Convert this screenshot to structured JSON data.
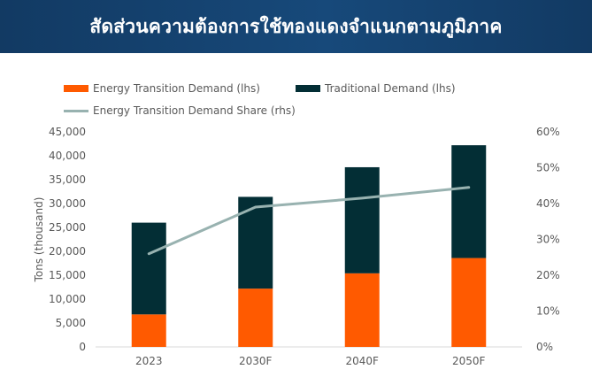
{
  "header": {
    "title": "สัดส่วนความต้องการใช้ทองแดงจำแนกตามภูมิภาค"
  },
  "colors": {
    "header_bg": "#17497a",
    "energy_transition": "#ff5a00",
    "traditional": "#032e35",
    "share_line": "#98b2b0",
    "axis_text": "#595959",
    "grid": "#d9d9d9"
  },
  "chart_data": {
    "type": "bar",
    "stacked": true,
    "categories": [
      "2023",
      "2030F",
      "2040F",
      "2050F"
    ],
    "series": [
      {
        "name": "Energy Transition Demand (lhs)",
        "axis": "left",
        "kind": "bar",
        "values": [
          6800,
          12200,
          15400,
          18600
        ]
      },
      {
        "name": "Traditional Demand (lhs)",
        "axis": "left",
        "kind": "bar",
        "values": [
          19200,
          19200,
          22200,
          23600
        ]
      },
      {
        "name": "Energy Transition Demand Share (rhs)",
        "axis": "right",
        "kind": "line",
        "values": [
          26,
          39,
          41.5,
          44.5
        ]
      }
    ],
    "ylabel": "Tons (thousand)",
    "ylim": [
      0,
      45000
    ],
    "yticks": [
      "0",
      "5,000",
      "10,000",
      "15,000",
      "20,000",
      "25,000",
      "30,000",
      "35,000",
      "40,000",
      "45,000"
    ],
    "y2lim": [
      0,
      60
    ],
    "y2ticks": [
      "0%",
      "10%",
      "20%",
      "30%",
      "40%",
      "50%",
      "60%"
    ],
    "legend_position": "top"
  }
}
